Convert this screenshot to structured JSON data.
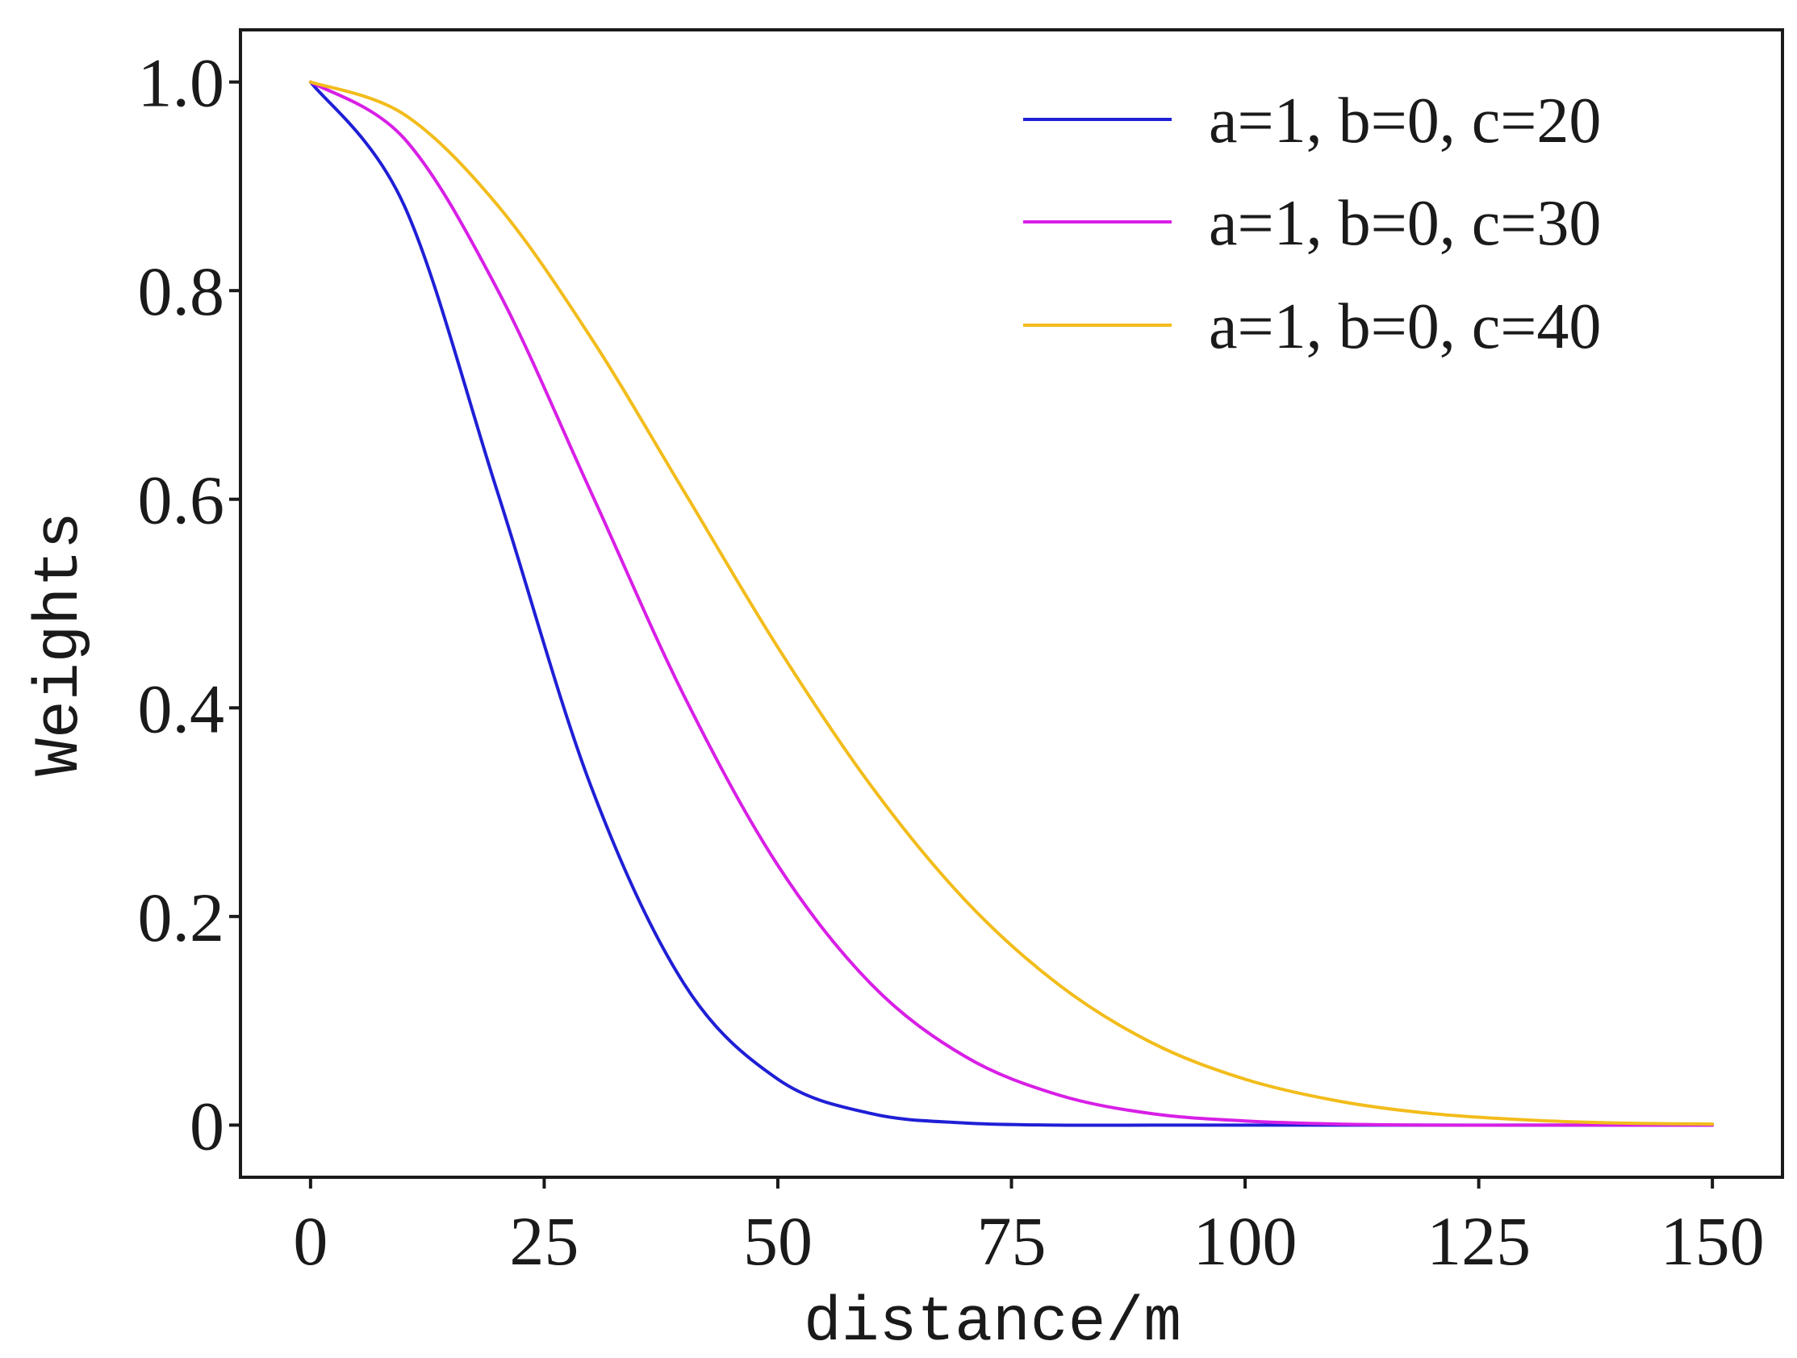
{
  "chart_data": {
    "type": "line",
    "xlabel": "distance/m",
    "ylabel": "Weights",
    "xlim": [
      -7.5,
      157.5
    ],
    "ylim": [
      -0.05,
      1.05
    ],
    "x_ticks": [
      0,
      25,
      50,
      75,
      100,
      125,
      150
    ],
    "x_tick_labels": [
      "0",
      "25",
      "50",
      "75",
      "100",
      "125",
      "150"
    ],
    "y_ticks": [
      0,
      0.2,
      0.4,
      0.6,
      0.8,
      1.0
    ],
    "y_tick_labels": [
      "0",
      "0.2",
      "0.4",
      "0.6",
      "0.8",
      "1.0"
    ],
    "grid": false,
    "legend_position": "top-right",
    "x": [
      0,
      10,
      20,
      30,
      40,
      50,
      60,
      70,
      80,
      90,
      100,
      110,
      120,
      130,
      140,
      150
    ],
    "series": [
      {
        "name": "a=1, b=0, c=20",
        "color": "#1f1fd6",
        "values": [
          1.0,
          0.882,
          0.607,
          0.325,
          0.135,
          0.044,
          0.011,
          0.002,
          0.0,
          0.0,
          0.0,
          0.0,
          0.0,
          0.0,
          0.0,
          0.0
        ]
      },
      {
        "name": "a=1, b=0, c=30",
        "color": "#d81fe6",
        "values": [
          1.0,
          0.946,
          0.801,
          0.607,
          0.411,
          0.249,
          0.135,
          0.066,
          0.029,
          0.011,
          0.004,
          0.001,
          0.0,
          0.0,
          0.0,
          0.0
        ]
      },
      {
        "name": "a=1, b=0, c=40",
        "color": "#f2bc1b",
        "values": [
          1.0,
          0.969,
          0.882,
          0.755,
          0.607,
          0.458,
          0.325,
          0.216,
          0.135,
          0.079,
          0.044,
          0.023,
          0.011,
          0.005,
          0.002,
          0.001
        ]
      }
    ]
  }
}
